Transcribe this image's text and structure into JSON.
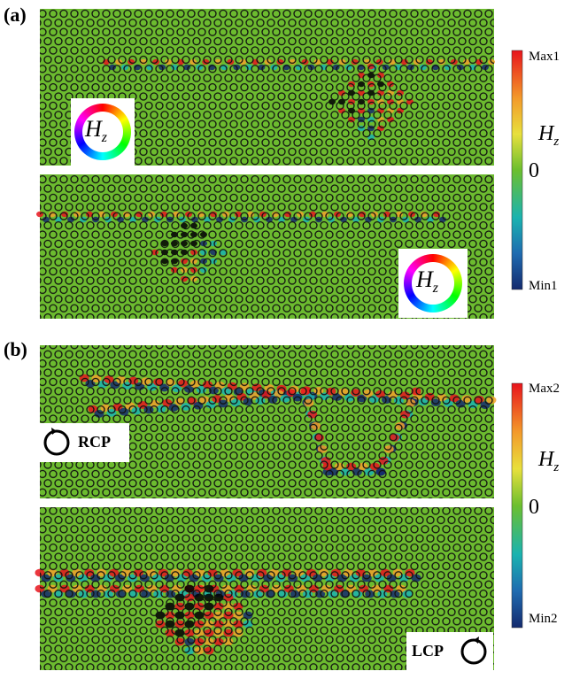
{
  "panel_a": {
    "label": "(a)",
    "colorbar": {
      "max": "Max1",
      "zero": "0",
      "min": "Min1",
      "quantity": {
        "symbol": "H",
        "subscript": "z"
      }
    },
    "insets": [
      {
        "symbol": "H",
        "subscript": "z"
      },
      {
        "symbol": "H",
        "subscript": "z"
      }
    ]
  },
  "panel_b": {
    "label": "(b)",
    "colorbar": {
      "max": "Max2",
      "zero": "0",
      "min": "Min2",
      "quantity": {
        "symbol": "H",
        "subscript": "z"
      }
    },
    "insets": [
      "RCP",
      "LCP"
    ]
  }
}
